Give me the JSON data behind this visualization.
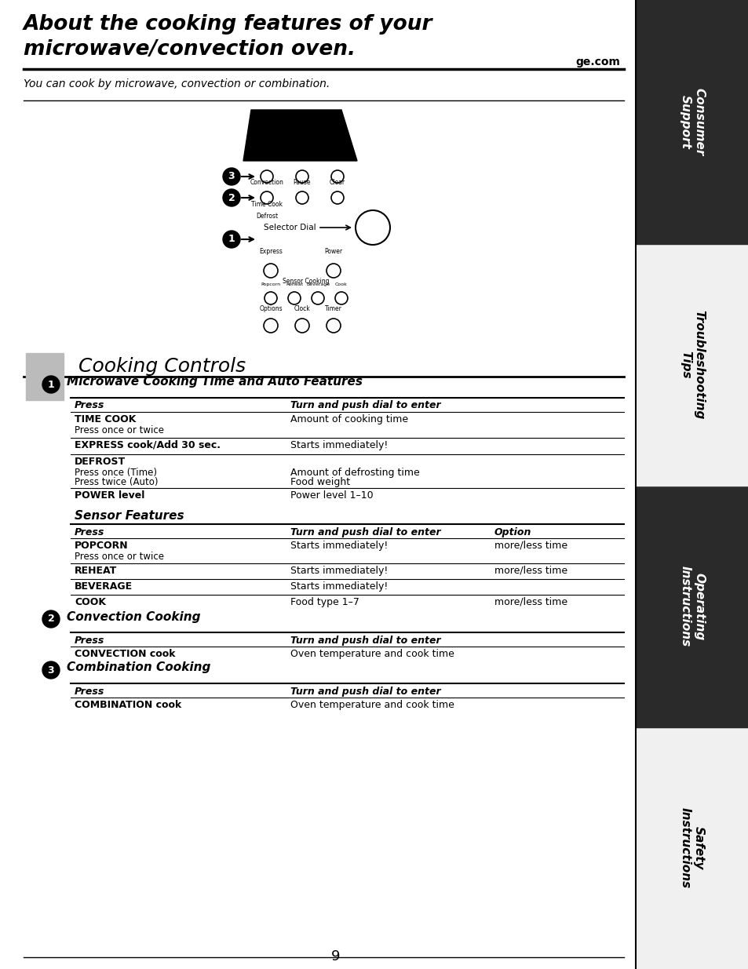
{
  "title_line1": "About the cooking features of your",
  "title_line2": "microwave/convection oven.",
  "subtitle": "ge.com",
  "intro": "You can cook by microwave, convection or combination.",
  "cooking_controls_title": "Cooking Controls",
  "section1_title": "Microwave Cooking Time and Auto Features",
  "section1_col1": "Press",
  "section1_col2": "Turn and push dial to enter",
  "section1_rows": [
    {
      "press": "TIME COOK",
      "press_sub": "Press once or twice",
      "turn": "Amount of cooking time",
      "option": ""
    },
    {
      "press": "EXPRESS cook/Add 30 sec.",
      "press_sub": "",
      "turn": "Starts immediately!",
      "option": ""
    },
    {
      "press": "DEFROST",
      "press_sub": "Press once (Time)\nPress twice (Auto)",
      "turn": "Amount of defrosting time\nFood weight",
      "option": ""
    },
    {
      "press": "POWER level",
      "press_sub": "",
      "turn": "Power level 1–10",
      "option": ""
    }
  ],
  "sensor_title": "Sensor Features",
  "sensor_col1": "Press",
  "sensor_col2": "Turn and push dial to enter",
  "sensor_col3": "Option",
  "sensor_rows": [
    {
      "press": "POPCORN",
      "press_sub": "Press once or twice",
      "turn": "Starts immediately!",
      "option": "more/less time"
    },
    {
      "press": "REHEAT",
      "press_sub": "",
      "turn": "Starts immediately!",
      "option": "more/less time"
    },
    {
      "press": "BEVERAGE",
      "press_sub": "",
      "turn": "Starts immediately!",
      "option": ""
    },
    {
      "press": "COOK",
      "press_sub": "",
      "turn": "Food type 1–7",
      "option": "more/less time"
    }
  ],
  "section2_title": "Convection Cooking",
  "section2_col1": "Press",
  "section2_col2": "Turn and push dial to enter",
  "section2_rows": [
    {
      "press": "CONVECTION cook",
      "turn": "Oven temperature and cook time"
    }
  ],
  "section3_title": "Combination Cooking",
  "section3_col1": "Press",
  "section3_col2": "Turn and push dial to enter",
  "section3_rows": [
    {
      "press": "COMBINATION cook",
      "turn": "Oven temperature and cook time"
    }
  ],
  "sidebar_labels": [
    "Safety\nInstructions",
    "Operating\nInstructions",
    "Troubleshooting\nTips",
    "Consumer\nSupport"
  ],
  "page_number": "9",
  "bg_color": "#ffffff",
  "sidebar_bg": "#1a1a1a",
  "sidebar_text_color": "#ffffff"
}
